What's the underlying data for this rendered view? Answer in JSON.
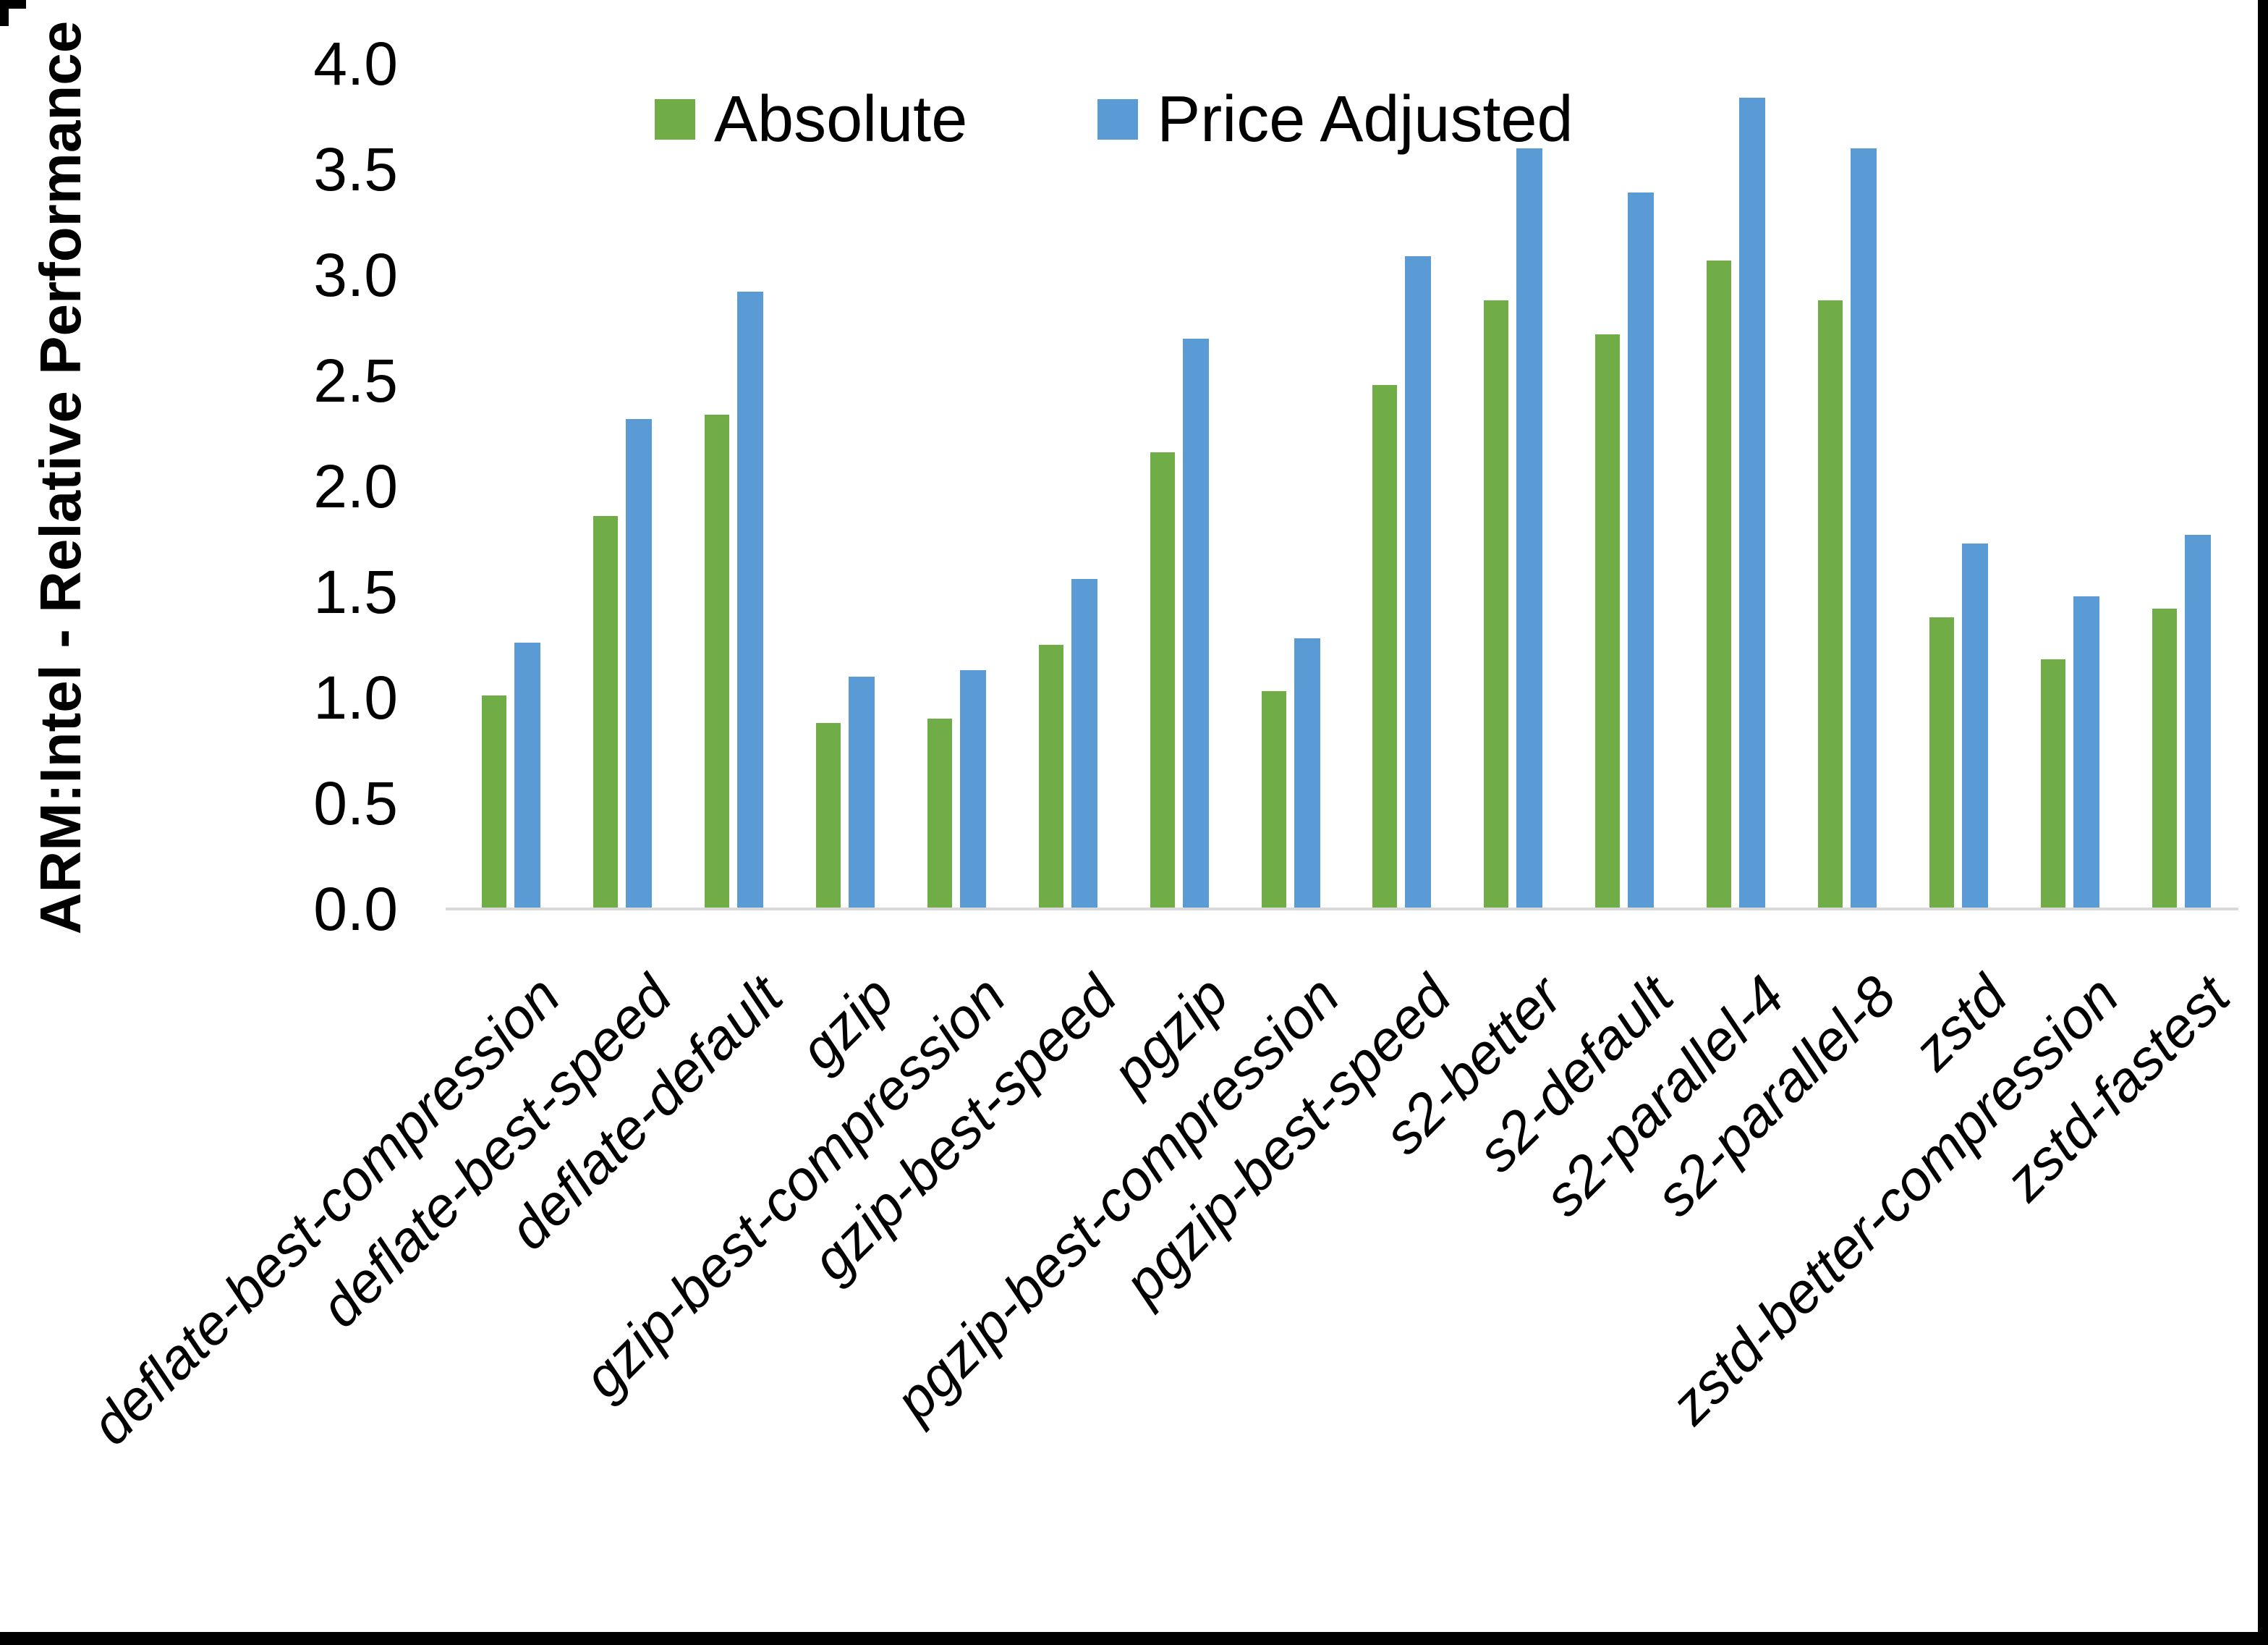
{
  "colors": {
    "absolute": "#70AD47",
    "price_adjusted": "#5B9BD5",
    "axis_line": "#D9D9D9",
    "frame": "#000000",
    "background": "#FFFFFF"
  },
  "y_axis": {
    "title": "ARM:Intel - Relative Performance"
  },
  "legend": {
    "items": [
      {
        "label": "Absolute",
        "color": "#70AD47"
      },
      {
        "label": "Price Adjusted",
        "color": "#5B9BD5"
      }
    ]
  },
  "chart_data": {
    "type": "bar",
    "title": "",
    "xlabel": "",
    "ylabel": "ARM:Intel - Relative Performance",
    "ylim": [
      0,
      4
    ],
    "ytick_step": 0.5,
    "ytick_labels": [
      "0.0",
      "0.5",
      "1.0",
      "1.5",
      "2.0",
      "2.5",
      "3.0",
      "3.5",
      "4.0"
    ],
    "grid": false,
    "legend_position": "top-center",
    "categories": [
      "deflate-best-compression",
      "deflate-best-speed",
      "deflate-default",
      "gzip",
      "gzip-best-compression",
      "gzip-best-speed",
      "pgzip",
      "pgzip-best-compression",
      "pgzip-best-speed",
      "s2-better",
      "s2-default",
      "s2-parallel-4",
      "s2-parallel-8",
      "zstd",
      "zstd-better-compression",
      "zstd-fastest"
    ],
    "series": [
      {
        "name": "Absolute",
        "color": "#70AD47",
        "values": [
          1.01,
          1.86,
          2.34,
          0.88,
          0.9,
          1.25,
          2.16,
          1.03,
          2.48,
          2.88,
          2.72,
          3.07,
          2.88,
          1.38,
          1.18,
          1.42
        ]
      },
      {
        "name": "Price Adjusted",
        "color": "#5B9BD5",
        "values": [
          1.26,
          2.32,
          2.92,
          1.1,
          1.13,
          1.56,
          2.7,
          1.28,
          3.09,
          3.6,
          3.39,
          3.84,
          3.6,
          1.73,
          1.48,
          1.77
        ]
      }
    ]
  }
}
